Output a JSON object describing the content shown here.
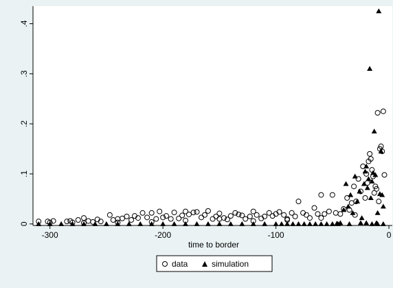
{
  "chart_data": {
    "type": "scatter",
    "title": "",
    "xlabel": "time to border",
    "ylabel": "",
    "xlim": [
      -315,
      3
    ],
    "ylim": [
      -0.003,
      0.435
    ],
    "xticks": [
      -300,
      -200,
      -100,
      0
    ],
    "xtick_labels": [
      "-300",
      "-200",
      "-100",
      "0"
    ],
    "yticks": [
      0,
      0.1,
      0.2,
      0.3,
      0.4
    ],
    "ytick_labels": [
      "0",
      ".1",
      ".2",
      ".3",
      ".4"
    ],
    "grid": false,
    "legend_position": "bottom-center",
    "series": [
      {
        "name": "data",
        "marker": "hollow-circle",
        "color": "#000000",
        "x": [
          -310,
          -302,
          -297,
          -285,
          -282,
          -280,
          -275,
          -270,
          -266,
          -262,
          -258,
          -255,
          -247,
          -244,
          -240,
          -236,
          -232,
          -228,
          -225,
          -222,
          -218,
          -214,
          -210,
          -206,
          -203,
          -200,
          -197,
          -193,
          -190,
          -186,
          -183,
          -180,
          -177,
          -173,
          -170,
          -166,
          -163,
          -160,
          -156,
          -153,
          -150,
          -146,
          -143,
          -140,
          -136,
          -133,
          -130,
          -127,
          -123,
          -120,
          -117,
          -113,
          -110,
          -106,
          -103,
          -100,
          -97,
          -93,
          -90,
          -86,
          -83,
          -80,
          -76,
          -73,
          -70,
          -66,
          -63,
          -60,
          -57,
          -53,
          -50,
          -47,
          -43,
          -40,
          -37,
          -35,
          -33,
          -31,
          -29,
          -27,
          -25,
          -23,
          -21,
          -20,
          -19,
          -18,
          -17,
          -16,
          -15,
          -14,
          -13,
          -12,
          -11,
          -10,
          -9,
          -8,
          -7,
          -6,
          -5,
          -4,
          -30,
          -60,
          -90,
          -120,
          -150,
          -180,
          -210,
          -240,
          -270,
          -300
        ],
        "y": [
          0.005,
          0.005,
          0.006,
          0.005,
          0.006,
          0.003,
          0.008,
          0.012,
          0.006,
          0.004,
          0.009,
          0.005,
          0.018,
          0.008,
          0.01,
          0.011,
          0.015,
          0.008,
          0.016,
          0.012,
          0.022,
          0.013,
          0.022,
          0.01,
          0.025,
          0.013,
          0.016,
          0.01,
          0.023,
          0.011,
          0.017,
          0.025,
          0.019,
          0.023,
          0.024,
          0.013,
          0.018,
          0.026,
          0.01,
          0.015,
          0.021,
          0.012,
          0.009,
          0.016,
          0.022,
          0.019,
          0.017,
          0.01,
          0.015,
          0.025,
          0.018,
          0.011,
          0.015,
          0.022,
          0.016,
          0.02,
          0.024,
          0.018,
          0.01,
          0.022,
          0.015,
          0.045,
          0.022,
          0.018,
          0.012,
          0.032,
          0.02,
          0.058,
          0.02,
          0.025,
          0.058,
          0.022,
          0.02,
          0.03,
          0.052,
          0.028,
          0.042,
          0.075,
          0.045,
          0.09,
          0.065,
          0.115,
          0.052,
          0.1,
          0.082,
          0.125,
          0.14,
          0.13,
          0.108,
          0.095,
          0.062,
          0.075,
          0.07,
          0.222,
          0.045,
          0.15,
          0.155,
          0.145,
          0.225,
          0.098,
          0.018,
          0.012,
          0.008,
          0.006,
          0.01,
          0.007,
          0.004,
          0.003,
          0.002,
          0.003
        ]
      },
      {
        "name": "simulation",
        "marker": "filled-triangle",
        "color": "#000000",
        "x": [
          -310,
          -300,
          -290,
          -280,
          -270,
          -260,
          -250,
          -240,
          -230,
          -220,
          -210,
          -200,
          -190,
          -180,
          -170,
          -160,
          -150,
          -140,
          -130,
          -120,
          -110,
          -100,
          -95,
          -90,
          -85,
          -80,
          -75,
          -70,
          -65,
          -60,
          -55,
          -50,
          -46,
          -43,
          -40,
          -38,
          -36,
          -34,
          -32,
          -30,
          -28,
          -26,
          -24,
          -22,
          -21,
          -20,
          -19,
          -18,
          -17,
          -16,
          -15,
          -14,
          -13,
          -12,
          -11,
          -10,
          -9,
          -8,
          -7,
          -6,
          -5,
          -45,
          -35,
          -25,
          -20,
          -15,
          -10,
          -5
        ],
        "y": [
          0,
          0,
          0,
          0,
          0,
          0,
          0,
          0,
          0,
          0,
          0,
          0,
          0,
          0,
          0,
          0,
          0,
          0,
          0,
          0,
          0,
          0,
          0,
          0,
          0,
          0,
          0,
          0,
          0,
          0,
          0,
          0,
          0.001,
          0.002,
          0.028,
          0.08,
          0.035,
          0.058,
          0.022,
          0.095,
          0.045,
          0.065,
          0.012,
          0.08,
          0.105,
          0.115,
          0.072,
          0.09,
          0.31,
          0.052,
          0.085,
          0.102,
          0.185,
          0.098,
          0.002,
          0.022,
          0.425,
          0.06,
          0.145,
          0.058,
          0.035,
          0,
          0,
          0.002,
          0.002,
          0,
          0,
          0
        ]
      }
    ]
  },
  "legend": {
    "items": [
      {
        "label": "data",
        "marker": "hollow-circle"
      },
      {
        "label": "simulation",
        "marker": "filled-triangle"
      }
    ]
  },
  "colors": {
    "background": "#eaf2f3",
    "plot_area": "#ffffff",
    "marker": "#000000"
  }
}
